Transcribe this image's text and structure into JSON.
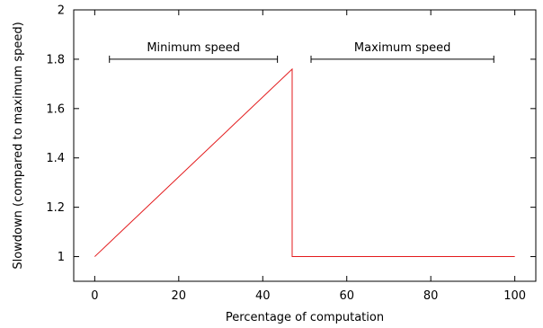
{
  "chart_data": {
    "type": "line",
    "xlabel": "Percentage of computation",
    "ylabel": "Slowdown (compared to maximum speed)",
    "xlim": [
      -5,
      105
    ],
    "ylim": [
      0.9,
      2.0
    ],
    "xticks": [
      0,
      20,
      40,
      60,
      80,
      100
    ],
    "yticks": [
      1,
      1.2,
      1.4,
      1.6,
      1.8,
      2
    ],
    "ytick_labels": [
      "1",
      "1.2",
      "1.4",
      "1.6",
      "1.8",
      "2"
    ],
    "grid": false,
    "series": [
      {
        "color": "#e31a1c",
        "x": [
          0,
          47,
          47,
          100
        ],
        "y": [
          1.0,
          1.76,
          1.0,
          1.0
        ]
      }
    ],
    "annotations": [
      {
        "text": "Minimum speed",
        "x_start": 3.5,
        "x_end": 43.5,
        "y": 1.8
      },
      {
        "text": "Maximum speed",
        "x_start": 51.5,
        "x_end": 95,
        "y": 1.8
      }
    ]
  }
}
